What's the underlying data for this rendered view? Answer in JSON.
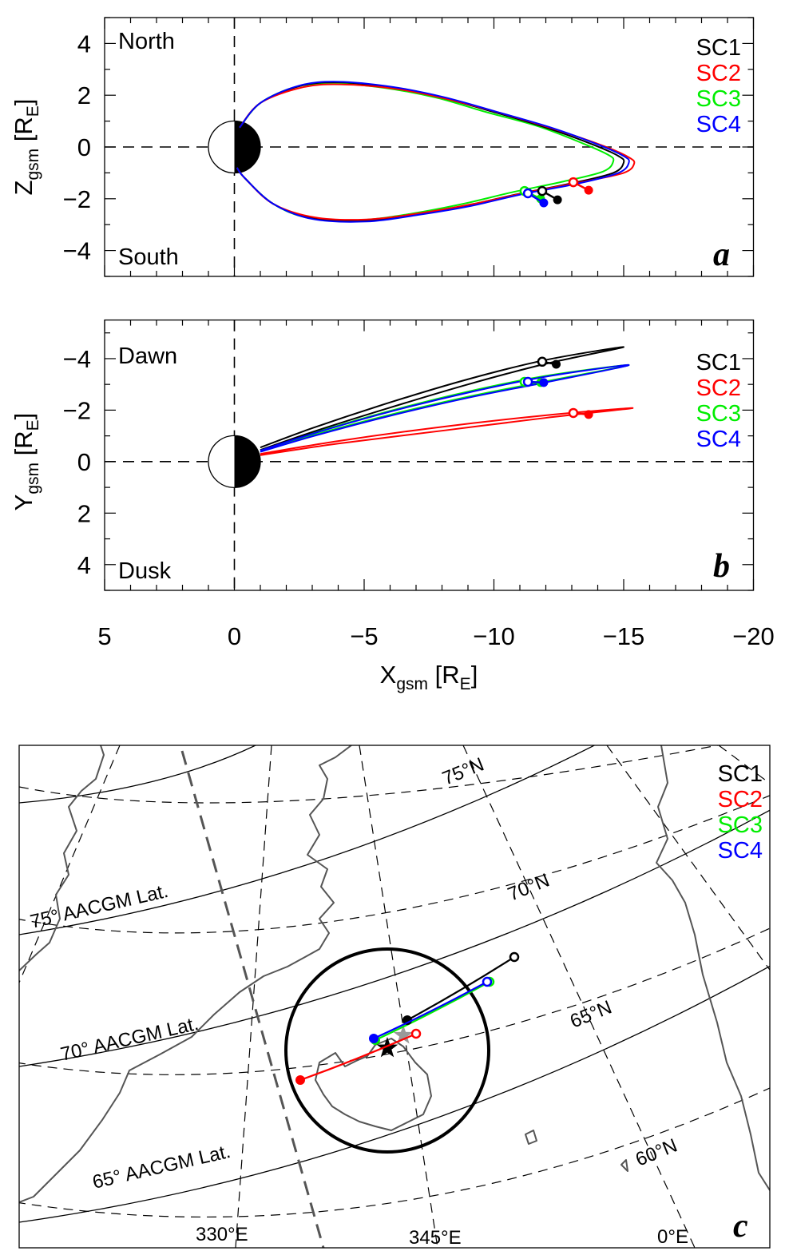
{
  "chart_data": [
    {
      "panel": "a",
      "type": "line",
      "xlabel": {
        "main": "X",
        "sub": "gsm",
        "unit_open": " [R",
        "unit_sub": "E",
        "unit_close": "]"
      },
      "ylabel": {
        "main": "Z",
        "sub": "gsm",
        "unit_open": " [R",
        "unit_sub": "E",
        "unit_close": "]"
      },
      "xlim": [
        5,
        -20
      ],
      "ylim": [
        -5,
        5
      ],
      "x_ticks": [
        5,
        0,
        -5,
        -10,
        -15,
        -20
      ],
      "y_ticks": [
        4,
        2,
        0,
        -2,
        -4
      ],
      "y_tick_labels": [
        "4",
        "2",
        "0",
        "−2",
        "−4"
      ],
      "annotations": {
        "top": "North",
        "bottom": "South",
        "panel_label": "a"
      },
      "legend_position": "top-right",
      "series": [
        {
          "name": "SC1",
          "color": "#000000",
          "field_line": [
            [
              -0.2,
              0.75
            ],
            [
              -1,
              1.7
            ],
            [
              -2.5,
              2.35
            ],
            [
              -4,
              2.5
            ],
            [
              -6,
              2.3
            ],
            [
              -8,
              1.9
            ],
            [
              -10,
              1.35
            ],
            [
              -12,
              0.75
            ],
            [
              -13.8,
              0.1
            ],
            [
              -14.8,
              -0.35
            ],
            [
              -15,
              -0.6
            ],
            [
              -14.6,
              -1.0
            ],
            [
              -13,
              -1.4
            ],
            [
              -11,
              -1.8
            ],
            [
              -9,
              -2.25
            ],
            [
              -7,
              -2.6
            ],
            [
              -5,
              -2.85
            ],
            [
              -3,
              -2.75
            ],
            [
              -1.5,
              -2.2
            ],
            [
              -0.4,
              -1.2
            ],
            [
              -0.1,
              -0.8
            ]
          ],
          "open_point": [
            -11.86,
            -1.7
          ],
          "filled_point": [
            -12.45,
            -2.04
          ]
        },
        {
          "name": "SC2",
          "color": "#ff0000",
          "field_line": [
            [
              -0.2,
              0.75
            ],
            [
              -1,
              1.7
            ],
            [
              -2.6,
              2.3
            ],
            [
              -4.1,
              2.42
            ],
            [
              -6.2,
              2.25
            ],
            [
              -8.2,
              1.85
            ],
            [
              -10.3,
              1.3
            ],
            [
              -12.3,
              0.7
            ],
            [
              -14.2,
              0.05
            ],
            [
              -15.2,
              -0.4
            ],
            [
              -15.4,
              -0.65
            ],
            [
              -15.0,
              -1.0
            ],
            [
              -13.4,
              -1.35
            ],
            [
              -11.3,
              -1.75
            ],
            [
              -9.2,
              -2.2
            ],
            [
              -7.2,
              -2.55
            ],
            [
              -5.1,
              -2.8
            ],
            [
              -3.1,
              -2.72
            ],
            [
              -1.5,
              -2.2
            ],
            [
              -0.4,
              -1.2
            ],
            [
              -0.1,
              -0.8
            ]
          ],
          "open_point": [
            -13.06,
            -1.36
          ],
          "filled_point": [
            -13.65,
            -1.67
          ]
        },
        {
          "name": "SC3",
          "color": "#00ee00",
          "field_line": [
            [
              -0.2,
              0.75
            ],
            [
              -1,
              1.7
            ],
            [
              -2.4,
              2.33
            ],
            [
              -3.9,
              2.45
            ],
            [
              -5.8,
              2.28
            ],
            [
              -7.8,
              1.9
            ],
            [
              -9.7,
              1.35
            ],
            [
              -11.7,
              0.8
            ],
            [
              -13.4,
              0.15
            ],
            [
              -14.4,
              -0.3
            ],
            [
              -14.6,
              -0.55
            ],
            [
              -14.2,
              -0.95
            ],
            [
              -12.6,
              -1.35
            ],
            [
              -10.7,
              -1.75
            ],
            [
              -8.8,
              -2.2
            ],
            [
              -6.8,
              -2.58
            ],
            [
              -4.9,
              -2.82
            ],
            [
              -2.9,
              -2.75
            ],
            [
              -1.5,
              -2.2
            ],
            [
              -0.4,
              -1.2
            ],
            [
              -0.1,
              -0.8
            ]
          ],
          "open_point": [
            -11.18,
            -1.7
          ],
          "filled_point": [
            -11.8,
            -2.0
          ]
        },
        {
          "name": "SC4",
          "color": "#0000ff",
          "field_line": [
            [
              -0.2,
              0.75
            ],
            [
              -1,
              1.7
            ],
            [
              -2.5,
              2.37
            ],
            [
              -4,
              2.52
            ],
            [
              -6.1,
              2.32
            ],
            [
              -8.1,
              1.92
            ],
            [
              -10.1,
              1.36
            ],
            [
              -12.2,
              0.75
            ],
            [
              -14,
              0.1
            ],
            [
              -15,
              -0.35
            ],
            [
              -15.2,
              -0.6
            ],
            [
              -14.8,
              -1.0
            ],
            [
              -13.2,
              -1.42
            ],
            [
              -11.1,
              -1.82
            ],
            [
              -9.1,
              -2.28
            ],
            [
              -7.1,
              -2.62
            ],
            [
              -5.1,
              -2.88
            ],
            [
              -3,
              -2.78
            ],
            [
              -1.5,
              -2.2
            ],
            [
              -0.4,
              -1.2
            ],
            [
              -0.1,
              -0.8
            ]
          ],
          "open_point": [
            -11.31,
            -1.79
          ],
          "filled_point": [
            -11.92,
            -2.16
          ]
        }
      ]
    },
    {
      "panel": "b",
      "type": "line",
      "xlabel": {
        "main": "X",
        "sub": "gsm",
        "unit_open": " [R",
        "unit_sub": "E",
        "unit_close": "]"
      },
      "ylabel": {
        "main": "Y",
        "sub": "gsm",
        "unit_open": " [R",
        "unit_sub": "E",
        "unit_close": "]"
      },
      "xlim": [
        5,
        -20
      ],
      "ylim": [
        5,
        -5.5
      ],
      "x_ticks": [
        5,
        0,
        -5,
        -10,
        -15,
        -20
      ],
      "x_tick_labels": [
        "5",
        "0",
        "−5",
        "−10",
        "−15",
        "−20"
      ],
      "y_ticks": [
        -4,
        -2,
        0,
        2,
        4
      ],
      "y_tick_labels": [
        "−4",
        "−2",
        "0",
        "2",
        "4"
      ],
      "annotations": {
        "top": "Dawn",
        "bottom": "Dusk",
        "panel_label": "b"
      },
      "legend_position": "top-right",
      "series": [
        {
          "name": "SC1",
          "color": "#000000",
          "field_line": [
            [
              -1,
              -0.55
            ],
            [
              -3,
              -1.3
            ],
            [
              -6,
              -2.3
            ],
            [
              -9,
              -3.2
            ],
            [
              -12,
              -3.95
            ],
            [
              -15,
              -4.45
            ],
            [
              -12,
              -3.8
            ],
            [
              -9,
              -3.0
            ],
            [
              -6,
              -2.1
            ],
            [
              -3,
              -1.15
            ],
            [
              -1,
              -0.45
            ]
          ],
          "open_point": [
            -11.86,
            -3.88
          ],
          "filled_point": [
            -12.4,
            -3.78
          ]
        },
        {
          "name": "SC2",
          "color": "#ff0000",
          "field_line": [
            [
              -1,
              -0.3
            ],
            [
              -4,
              -0.8
            ],
            [
              -8,
              -1.35
            ],
            [
              -12,
              -1.8
            ],
            [
              -15.35,
              -2.08
            ],
            [
              -12,
              -1.7
            ],
            [
              -8,
              -1.2
            ],
            [
              -4,
              -0.7
            ],
            [
              -1,
              -0.25
            ]
          ],
          "open_point": [
            -13.06,
            -1.89
          ],
          "filled_point": [
            -13.65,
            -1.83
          ]
        },
        {
          "name": "SC3",
          "color": "#00ee00",
          "field_line": [
            [
              -1,
              -0.45
            ],
            [
              -3,
              -1.1
            ],
            [
              -6,
              -1.97
            ],
            [
              -9,
              -2.72
            ],
            [
              -12,
              -3.33
            ],
            [
              -15.2,
              -3.75
            ],
            [
              -12,
              -3.12
            ],
            [
              -9,
              -2.52
            ],
            [
              -6,
              -1.82
            ],
            [
              -3,
              -1.02
            ],
            [
              -1,
              -0.4
            ]
          ],
          "open_point": [
            -11.18,
            -3.1
          ],
          "filled_point": [
            -11.8,
            -3.07
          ]
        },
        {
          "name": "SC4",
          "color": "#0000ff",
          "field_line": [
            [
              -1,
              -0.43
            ],
            [
              -3,
              -1.08
            ],
            [
              -6,
              -1.94
            ],
            [
              -9,
              -2.68
            ],
            [
              -12,
              -3.3
            ],
            [
              -15.2,
              -3.75
            ],
            [
              -12,
              -3.08
            ],
            [
              -9,
              -2.48
            ],
            [
              -6,
              -1.78
            ],
            [
              -3,
              -0.98
            ],
            [
              -1,
              -0.38
            ]
          ],
          "open_point": [
            -11.31,
            -3.1
          ],
          "filled_point": [
            -11.92,
            -3.07
          ]
        }
      ]
    },
    {
      "panel": "c",
      "type": "map",
      "panel_label": "c",
      "legend_position": "top-right",
      "legend": [
        {
          "name": "SC1",
          "color": "#000000"
        },
        {
          "name": "SC2",
          "color": "#ff0000"
        },
        {
          "name": "SC3",
          "color": "#00ee00"
        },
        {
          "name": "SC4",
          "color": "#0000ff"
        }
      ],
      "aacgm_labels": [
        "75° AACGM Lat.",
        "70° AACGM Lat.",
        "65° AACGM Lat."
      ],
      "geo_lat_labels": [
        "75°N",
        "70°N",
        "65°N",
        "60°N"
      ],
      "geo_lon_labels": [
        "330°E",
        "345°E",
        "0°E"
      ],
      "coast_color": "#555555"
    }
  ]
}
